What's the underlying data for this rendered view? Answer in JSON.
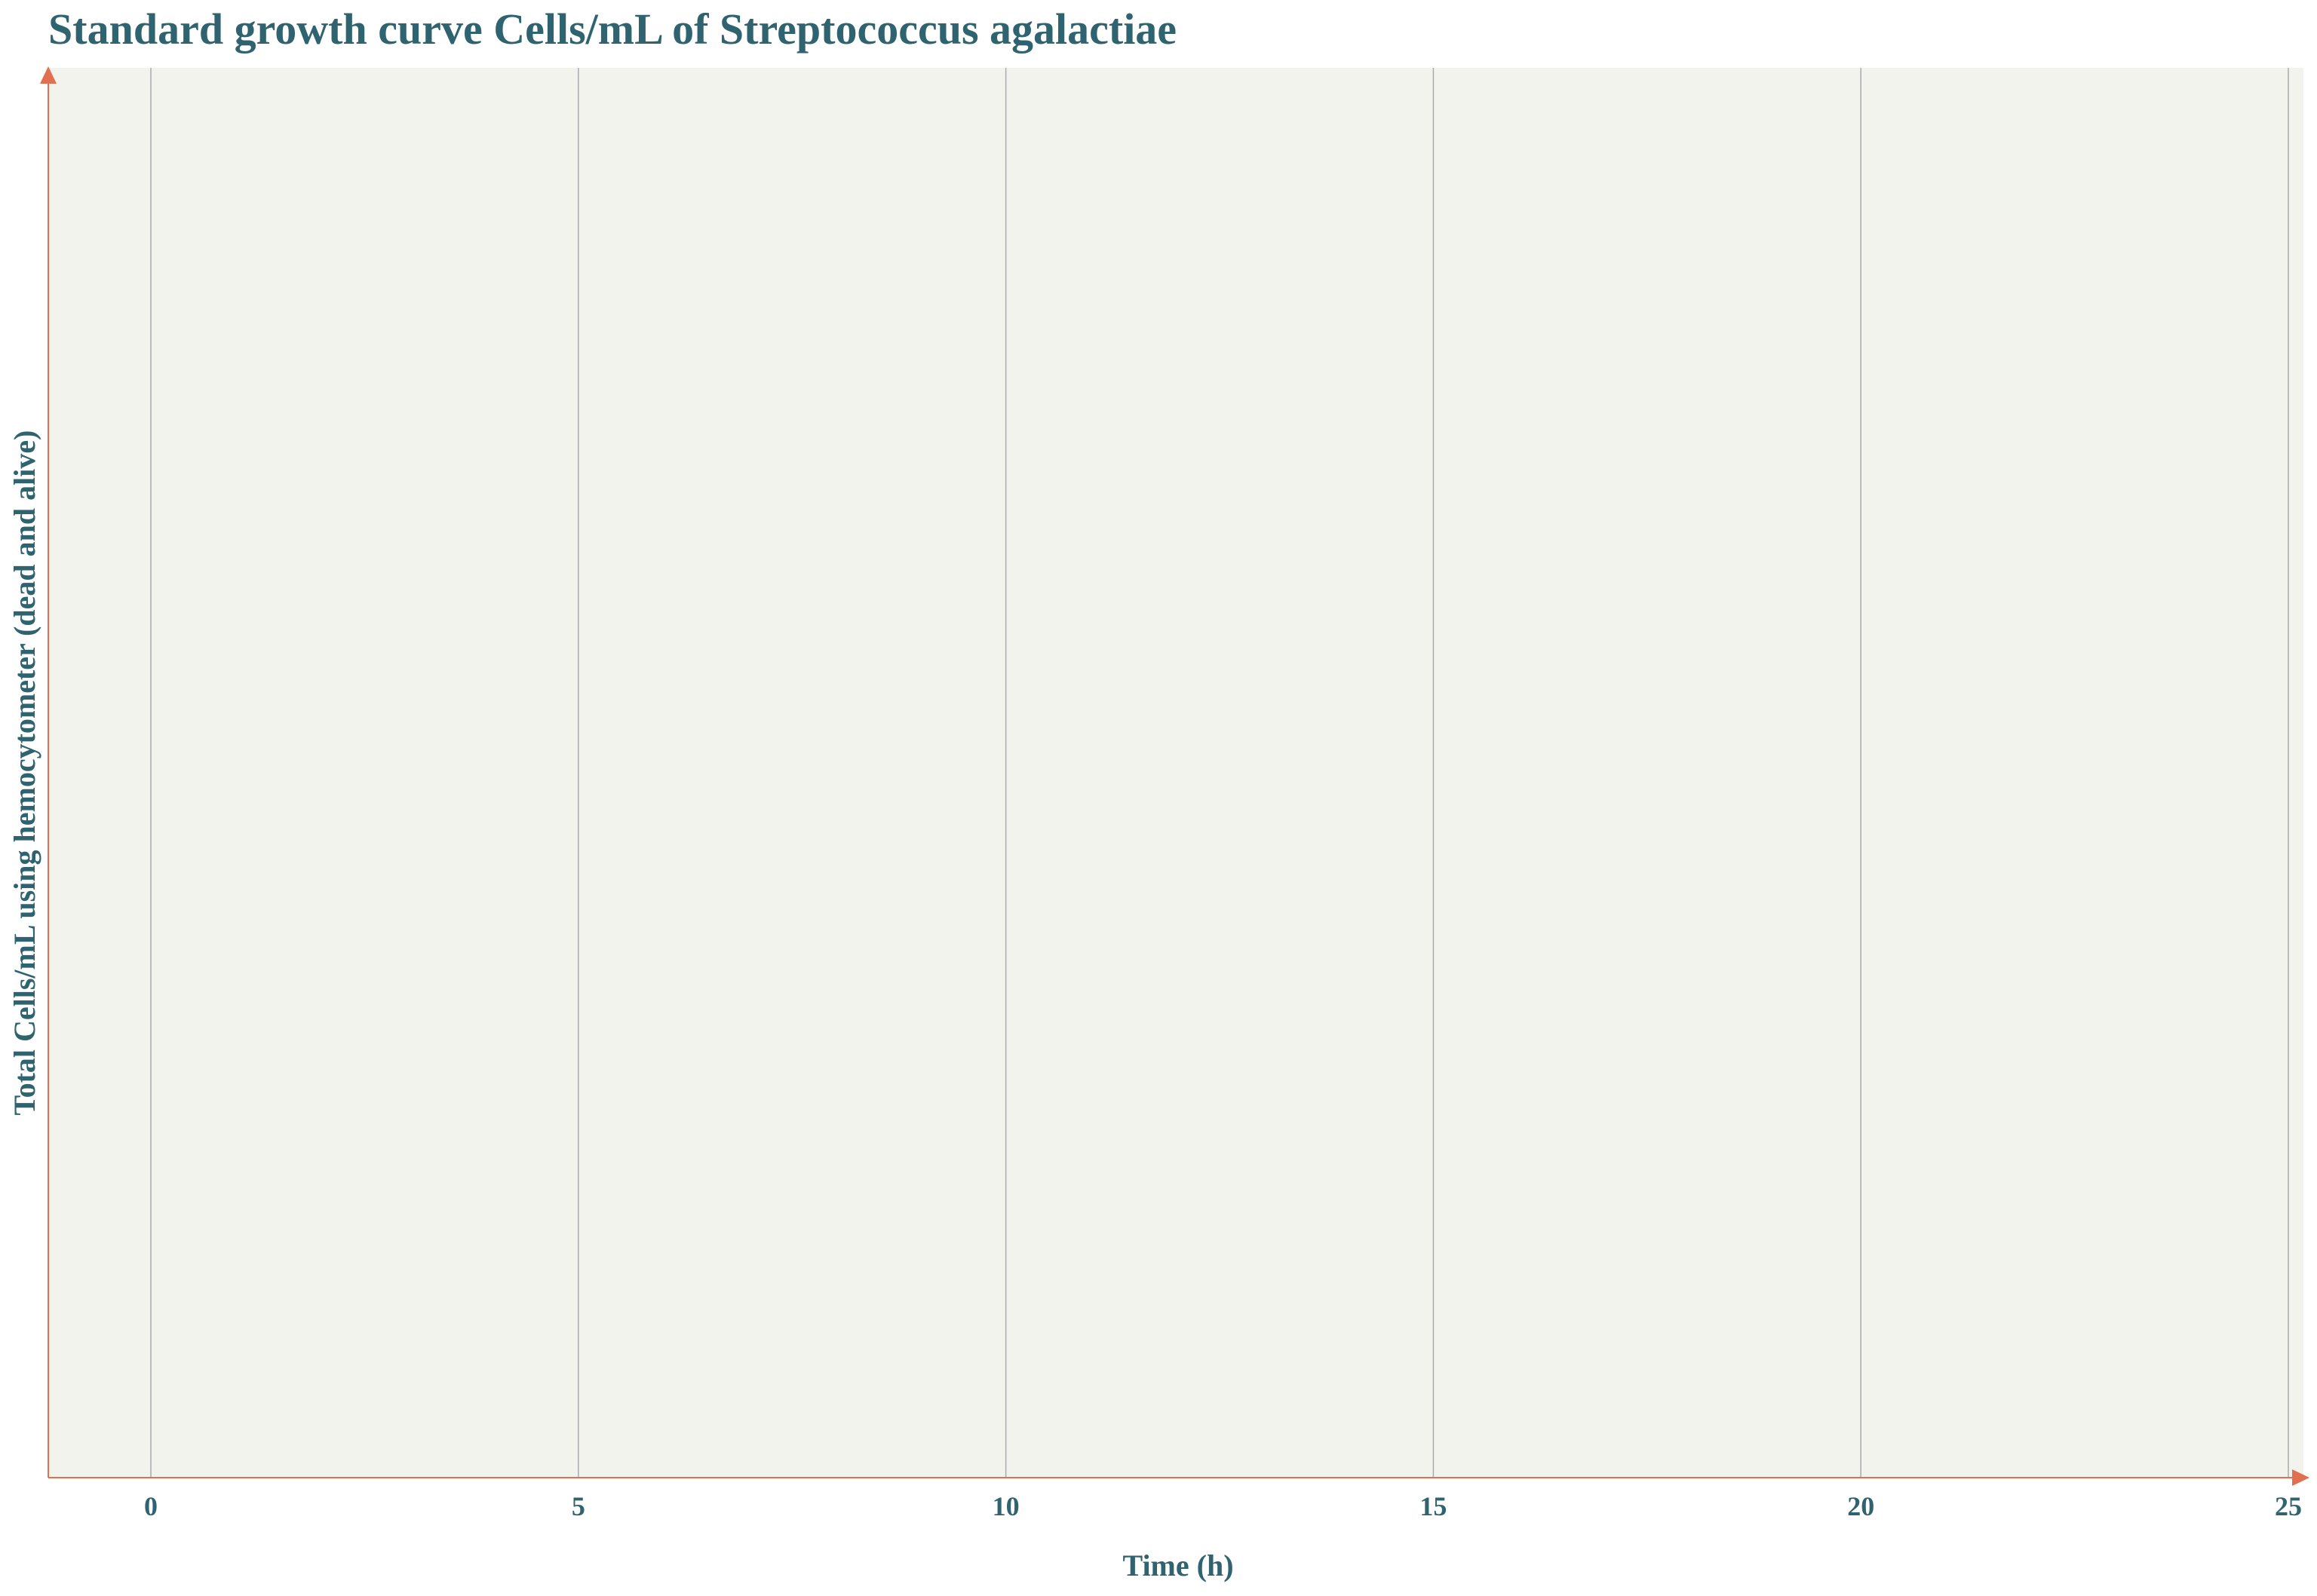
{
  "chart_data": {
    "type": "line",
    "title": "Standard growth curve Cells/mL of Streptococcus agalactiae",
    "xlabel": "Time (h)",
    "ylabel": "Total Cells/mL using hemocytometer (dead and alive)",
    "xlim": [
      -1.2,
      25
    ],
    "xticks": [
      0,
      5,
      10,
      15,
      20,
      25
    ],
    "xtick_labels": [
      "0",
      "5",
      "10",
      "15",
      "20",
      "25"
    ],
    "series": [],
    "grid": "vertical",
    "legend": "none"
  },
  "colors": {
    "plot_background": "#f3f3ee",
    "grid": "#a7abb0",
    "axis": "#e07050",
    "text": "#2f6370"
  }
}
